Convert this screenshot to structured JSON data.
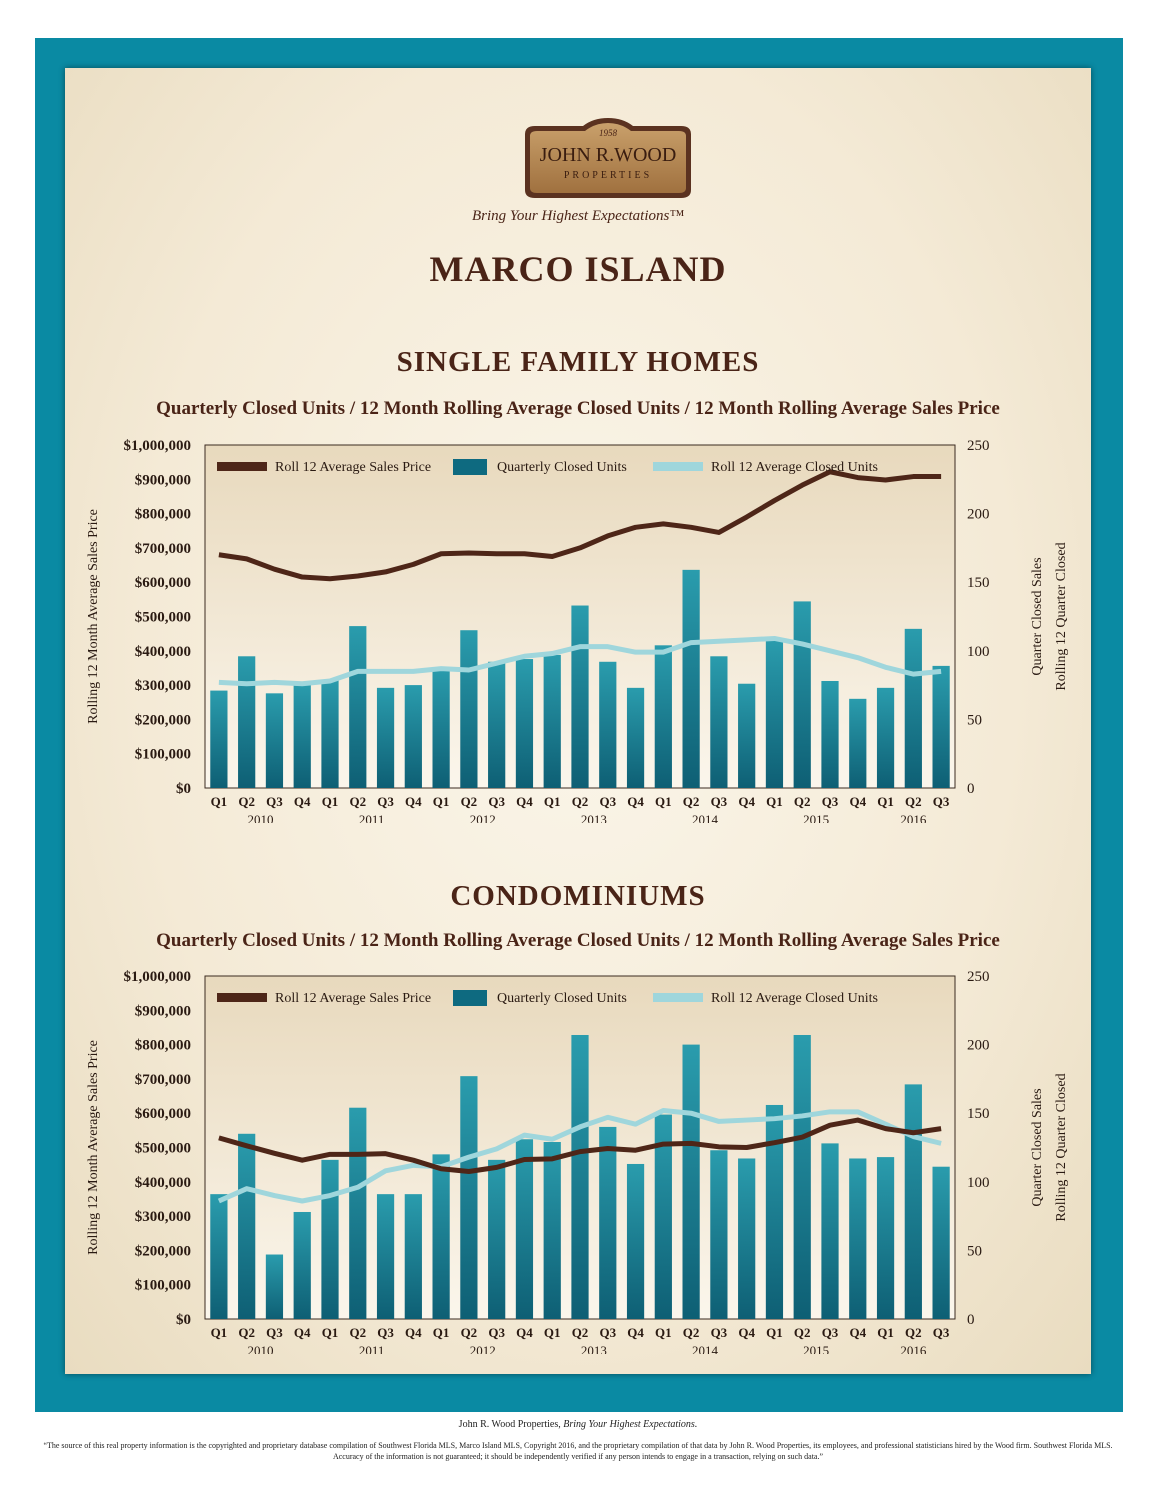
{
  "logo": {
    "year": "1958",
    "name": "JOHN R.WOOD",
    "sub": "PROPERTIES",
    "tagline": "Bring Your Highest Expectations™"
  },
  "page_title": "MARCO ISLAND",
  "sections": [
    {
      "title": "SINGLE FAMILY HOMES",
      "subtitle": "Quarterly Closed Units / 12 Month Rolling Average Closed Units / 12 Month Rolling Average Sales Price"
    },
    {
      "title": "CONDOMINIUMS",
      "subtitle": "Quarterly Closed Units / 12 Month Rolling Average Closed Units / 12 Month Rolling Average Sales Price"
    }
  ],
  "colors": {
    "frame": "#0a8aa3",
    "bar_top": "#2a9cad",
    "bar_bottom": "#0e5f74",
    "price_line": "#4e2618",
    "units_line": "#9fd6dc",
    "text": "#4a2417"
  },
  "chart_data": [
    {
      "type": "bar",
      "ylabel": "Rolling 12 Month Average Sales Price",
      "y2label_line1": "Quarter Closed Sales",
      "y2label_line2": "Rolling 12 Quarter Closed",
      "ylim": [
        0,
        1000000
      ],
      "y2lim": [
        0,
        250
      ],
      "yticks": [
        "$0",
        "$100,000",
        "$200,000",
        "$300,000",
        "$400,000",
        "$500,000",
        "$600,000",
        "$700,000",
        "$800,000",
        "$900,000",
        "$1,000,000"
      ],
      "y2ticks": [
        "0",
        "50",
        "100",
        "150",
        "200",
        "250"
      ],
      "categories": [
        "Q1",
        "Q2",
        "Q3",
        "Q4",
        "Q1",
        "Q2",
        "Q3",
        "Q4",
        "Q1",
        "Q2",
        "Q3",
        "Q4",
        "Q1",
        "Q2",
        "Q3",
        "Q4",
        "Q1",
        "Q2",
        "Q3",
        "Q4",
        "Q1",
        "Q2",
        "Q3",
        "Q4",
        "Q1",
        "Q2",
        "Q3"
      ],
      "years": [
        {
          "label": "2010",
          "start": 0
        },
        {
          "label": "2011",
          "start": 4
        },
        {
          "label": "2012",
          "start": 8
        },
        {
          "label": "2013",
          "start": 12
        },
        {
          "label": "2014",
          "start": 16
        },
        {
          "label": "2015",
          "start": 20
        },
        {
          "label": "2016",
          "start": 24
        }
      ],
      "legend": [
        "Roll 12 Average Sales Price",
        "Quarterly Closed Units",
        "Roll 12 Average Closed Units"
      ],
      "bars_units": [
        71,
        96,
        69,
        76,
        79,
        118,
        73,
        75,
        87,
        115,
        92,
        94,
        97,
        133,
        92,
        73,
        104,
        159,
        96,
        76,
        108,
        136,
        78,
        65,
        73,
        116,
        89
      ],
      "roll_units": [
        77,
        76,
        77,
        76,
        78,
        85,
        85,
        85,
        87,
        86,
        91,
        96,
        98,
        103,
        103,
        99,
        99,
        106,
        107,
        108,
        109,
        105,
        100,
        95,
        88,
        83,
        85
      ],
      "price": [
        680000,
        668000,
        638000,
        615000,
        610000,
        618000,
        630000,
        652000,
        683000,
        685000,
        683000,
        683000,
        675000,
        700000,
        735000,
        760000,
        770000,
        760000,
        745000,
        790000,
        838000,
        883000,
        922000,
        905000,
        898000,
        908000,
        908000
      ]
    },
    {
      "type": "bar",
      "ylabel": "Rolling 12 Month Average Sales Price",
      "y2label_line1": "Quarter Closed Sales",
      "y2label_line2": "Rolling 12 Quarter Closed",
      "ylim": [
        0,
        1000000
      ],
      "y2lim": [
        0,
        250
      ],
      "yticks": [
        "$0",
        "$100,000",
        "$200,000",
        "$300,000",
        "$400,000",
        "$500,000",
        "$600,000",
        "$700,000",
        "$800,000",
        "$900,000",
        "$1,000,000"
      ],
      "y2ticks": [
        "0",
        "50",
        "100",
        "150",
        "200",
        "250"
      ],
      "categories": [
        "Q1",
        "Q2",
        "Q3",
        "Q4",
        "Q1",
        "Q2",
        "Q3",
        "Q4",
        "Q1",
        "Q2",
        "Q3",
        "Q4",
        "Q1",
        "Q2",
        "Q3",
        "Q4",
        "Q1",
        "Q2",
        "Q3",
        "Q4",
        "Q1",
        "Q2",
        "Q3",
        "Q4",
        "Q1",
        "Q2",
        "Q3"
      ],
      "years": [
        {
          "label": "2010",
          "start": 0
        },
        {
          "label": "2011",
          "start": 4
        },
        {
          "label": "2012",
          "start": 8
        },
        {
          "label": "2013",
          "start": 12
        },
        {
          "label": "2014",
          "start": 16
        },
        {
          "label": "2015",
          "start": 20
        },
        {
          "label": "2016",
          "start": 24
        }
      ],
      "legend": [
        "Roll 12 Average Sales Price",
        "Quarterly Closed Units",
        "Roll 12 Average Closed Units"
      ],
      "bars_units": [
        91,
        135,
        47,
        78,
        116,
        154,
        91,
        91,
        120,
        177,
        116,
        131,
        129,
        207,
        140,
        113,
        149,
        200,
        123,
        117,
        156,
        207,
        128,
        117,
        118,
        171,
        111
      ],
      "roll_units": [
        86,
        95,
        90,
        86,
        90,
        96,
        108,
        112,
        111,
        118,
        124,
        134,
        131,
        140,
        147,
        142,
        152,
        150,
        144,
        145,
        146,
        148,
        151,
        151,
        142,
        133,
        128
      ],
      "price": [
        528000,
        505000,
        483000,
        463000,
        480000,
        480000,
        482000,
        463000,
        438000,
        430000,
        442000,
        465000,
        467000,
        488000,
        497000,
        492000,
        510000,
        512000,
        502000,
        500000,
        514000,
        530000,
        565000,
        580000,
        555000,
        543000,
        555000
      ]
    }
  ],
  "footer_line1_a": "John R. Wood Properties, ",
  "footer_line1_b": "Bring Your Highest Expectations.",
  "footer_line2": "“The source of this real property information is the copyrighted and proprietary database compilation of Southwest Florida MLS, Marco Island MLS, Copyright 2016, and the proprietary compilation of that data by John R. Wood Properties, its employees, and professional statisticians hired by the Wood firm. Southwest Florida MLS. Accuracy of the information is not guaranteed; it should be independently verified if any person intends to engage in a transaction, relying on such data.”"
}
